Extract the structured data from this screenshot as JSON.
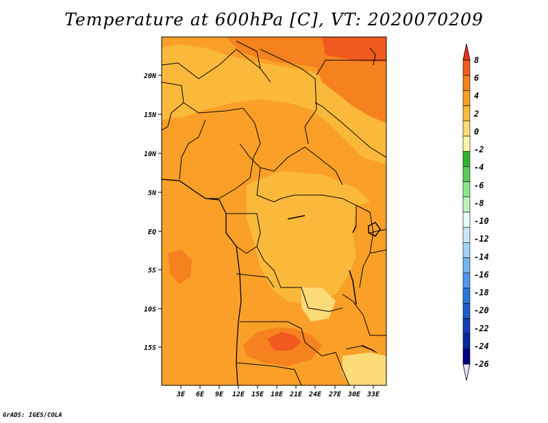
{
  "title": "Temperature at 600hPa [C], VT: 2020070209",
  "credit": "GrADS: IGES/COLA",
  "map": {
    "lat_labels": [
      "20N",
      "15N",
      "10N",
      "5N",
      "EQ",
      "5S",
      "10S",
      "15S"
    ],
    "lon_labels": [
      "3E",
      "6E",
      "9E",
      "12E",
      "15E",
      "18E",
      "21E",
      "24E",
      "27E",
      "30E",
      "33E"
    ]
  },
  "colorbar": {
    "labels": [
      "8",
      "6",
      "4",
      "2",
      "0",
      "-2",
      "-4",
      "-6",
      "-8",
      "-10",
      "-12",
      "-14",
      "-16",
      "-18",
      "-20",
      "-22",
      "-24",
      "-26"
    ],
    "colors": [
      "#e8321e",
      "#f05a1e",
      "#f5821e",
      "#faa028",
      "#fbb93c",
      "#fcdc78",
      "#fff5aa",
      "#32b432",
      "#5ac85a",
      "#8ce68c",
      "#bef0be",
      "#e6fff0",
      "#c8e6f5",
      "#a0d2f5",
      "#78b4f0",
      "#5096eb",
      "#2878dc",
      "#1e5ac8",
      "#143cb4",
      "#0a28a0",
      "#00007d",
      "#e1e1fa"
    ]
  }
}
